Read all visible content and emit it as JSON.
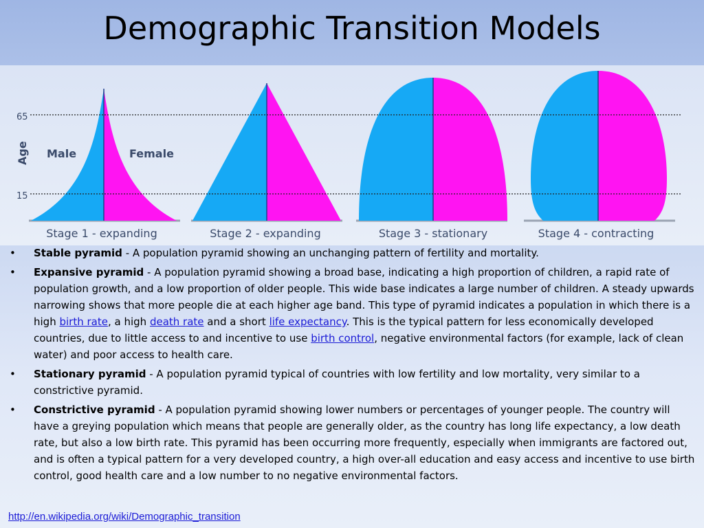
{
  "title": "Demographic Transition Models",
  "diagram": {
    "y_axis_label": "Age",
    "y_ticks": [
      "65",
      "15"
    ],
    "male_label": "Male",
    "female_label": "Female",
    "male_color": "#16a9f5",
    "female_color": "#ff14f2",
    "stages": [
      {
        "label": "Stage 1 - expanding"
      },
      {
        "label": "Stage 2 - expanding"
      },
      {
        "label": "Stage 3 - stationary"
      },
      {
        "label": "Stage 4 - contracting"
      }
    ]
  },
  "bullets": [
    {
      "bullet": "•",
      "term": "Stable pyramid",
      "text": " - A population pyramid showing an unchanging pattern of fertility and mortality."
    },
    {
      "bullet": "•",
      "term": "Expansive pyramid",
      "text1": " - A population pyramid showing a broad base, indicating a high proportion of children, a rapid rate of population growth, and a low proportion of older people. This wide base indicates a large number of children. A steady upwards narrowing shows that more people die at each higher age band. This type of pyramid indicates a population in which there is a high ",
      "link1": "birth rate",
      "text2": ", a high ",
      "link2": "death rate",
      "text3": " and a short ",
      "link3": "life expectancy",
      "text4": ". This is the typical pattern for less economically developed countries, due to little access to and incentive to use ",
      "link4": "birth control",
      "text5": ", negative environmental factors (for example, lack of clean water) and poor access to health care."
    },
    {
      "bullet": "•",
      "term": "Stationary pyramid",
      "text": " - A population pyramid typical of countries with low fertility and low mortality, very similar to a constrictive pyramid."
    },
    {
      "bullet": "•",
      "term": "Constrictive pyramid",
      "text": " - A population pyramid showing lower numbers or percentages of younger people. The country will have a greying population which means that people are generally older, as the country has long life expectancy, a low death rate, but also a low birth rate. This pyramid has been occurring more frequently, especially when immigrants are factored out, and is often a typical pattern for a very developed country, a high over-all education and easy access and incentive to use birth control, good health care and a low number to no negative environmental factors."
    }
  ],
  "source_link": "http://en.wikipedia.org/wiki/Demographic_transition"
}
